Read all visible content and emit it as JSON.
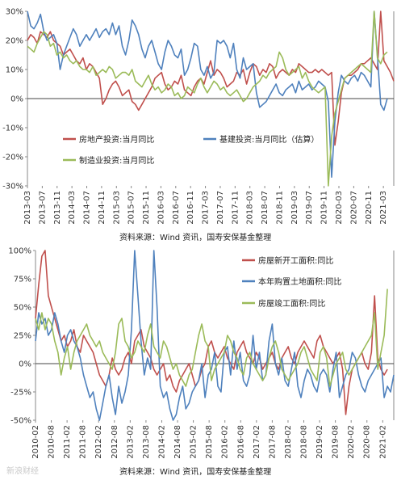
{
  "chart_data": [
    {
      "type": "line",
      "x_start": "2013-03",
      "x_ticks": [
        "2013-03",
        "2013-07",
        "2013-11",
        "2014-03",
        "2014-07",
        "2014-11",
        "2015-03",
        "2015-07",
        "2015-11",
        "2016-03",
        "2016-07",
        "2016-11",
        "2017-03",
        "2017-07",
        "2017-11",
        "2018-03",
        "2018-07",
        "2018-11",
        "2019-03",
        "2019-07",
        "2019-11",
        "2020-03",
        "2020-07",
        "2020-11",
        "2021-03"
      ],
      "y_ticks": [
        "30%",
        "20%",
        "10%",
        "0%",
        "-10%",
        "-20%",
        "-30%"
      ],
      "ylim": [
        -30,
        30
      ],
      "y_unit": "%",
      "source": "资料来源：Wind 资讯，国寿安保基金整理",
      "series": [
        {
          "name": "房地产投资:当月同比",
          "color": "#c0504d",
          "values": [
            20,
            22,
            21,
            19,
            23,
            22,
            21,
            23,
            20,
            19,
            18,
            15,
            16,
            17,
            15,
            13,
            12,
            14,
            10,
            12,
            11,
            9,
            7,
            -2,
            0,
            3,
            5,
            6,
            4,
            1,
            2,
            3,
            -1,
            -2,
            -4,
            -2,
            0,
            2,
            4,
            7,
            8,
            9,
            5,
            3,
            4,
            6,
            5,
            8,
            3,
            2,
            1,
            4,
            6,
            7,
            5,
            9,
            13,
            8,
            10,
            9,
            7,
            4,
            5,
            6,
            9,
            8,
            10,
            5,
            9,
            12,
            11,
            8,
            10,
            9,
            12,
            11,
            7,
            9,
            10,
            9,
            8,
            10,
            9,
            12,
            11,
            10,
            9,
            9,
            10,
            9,
            10,
            9,
            8,
            9,
            -16,
            -8,
            2,
            7,
            8,
            8,
            9,
            10,
            12,
            12,
            13,
            14,
            12,
            10,
            30,
            13,
            11,
            9,
            6
          ]
        },
        {
          "name": "基建投资:当月同比（估算）",
          "color": "#4f81bd",
          "values": [
            30,
            25,
            24,
            26,
            29,
            23,
            20,
            21,
            22,
            19,
            10,
            15,
            18,
            21,
            24,
            22,
            18,
            20,
            22,
            20,
            22,
            24,
            21,
            23,
            24,
            22,
            26,
            22,
            25,
            18,
            15,
            20,
            27,
            25,
            22,
            17,
            14,
            18,
            20,
            16,
            12,
            10,
            16,
            20,
            18,
            15,
            14,
            17,
            8,
            10,
            14,
            19,
            18,
            10,
            8,
            11,
            7,
            9,
            20,
            19,
            20,
            18,
            14,
            19,
            10,
            7,
            14,
            10,
            11,
            12,
            2,
            -3,
            -2,
            -1,
            1,
            3,
            5,
            2,
            1,
            3,
            4,
            5,
            2,
            6,
            3,
            4,
            5,
            3,
            4,
            6,
            5,
            4,
            -1,
            -27,
            -8,
            2,
            8,
            6,
            5,
            7,
            8,
            6,
            9,
            8,
            6,
            4,
            34,
            15,
            -2,
            -4,
            0
          ]
        },
        {
          "name": "制造业投资:当月同比",
          "color": "#9bbb59",
          "values": [
            18,
            17,
            16,
            19,
            21,
            23,
            22,
            18,
            19,
            15,
            16,
            14,
            15,
            13,
            12,
            13,
            11,
            10,
            10,
            9,
            11,
            8,
            9,
            10,
            9,
            11,
            10,
            7,
            8,
            9,
            9,
            8,
            10,
            6,
            5,
            4,
            6,
            8,
            5,
            3,
            4,
            2,
            3,
            5,
            4,
            1,
            2,
            0,
            1,
            4,
            3,
            2,
            5,
            7,
            4,
            2,
            4,
            6,
            5,
            3,
            4,
            2,
            1,
            2,
            3,
            1,
            -1,
            0,
            2,
            4,
            5,
            6,
            8,
            7,
            9,
            10,
            11,
            16,
            14,
            10,
            8,
            9,
            10,
            11,
            7,
            9,
            6,
            4,
            3,
            2,
            3,
            4,
            -30,
            -13,
            -5,
            -1,
            3,
            7,
            8,
            9,
            10,
            11,
            12,
            11,
            10,
            9,
            30,
            14,
            12,
            15,
            16
          ]
        }
      ]
    },
    {
      "type": "line",
      "x_start": "2010-02",
      "x_ticks": [
        "2010-02",
        "2010-08",
        "2011-02",
        "2011-08",
        "2012-02",
        "2012-08",
        "2013-02",
        "2013-08",
        "2014-02",
        "2014-08",
        "2015-02",
        "2015-08",
        "2016-02",
        "2016-08",
        "2017-02",
        "2017-08",
        "2018-02",
        "2018-08",
        "2019-02",
        "2019-08",
        "2020-02",
        "2020-08",
        "2021-02"
      ],
      "y_ticks": [
        "100%",
        "75%",
        "50%",
        "25%",
        "0%",
        "-25%",
        "-50%"
      ],
      "ylim": [
        -50,
        100
      ],
      "y_unit": "%",
      "source": "资料来源：Wind 资讯，国寿安保基金整理",
      "series": [
        {
          "name": "房屋新开工面积:同比",
          "color": "#c0504d",
          "values": [
            40,
            70,
            95,
            100,
            60,
            50,
            40,
            30,
            20,
            25,
            15,
            20,
            30,
            15,
            10,
            25,
            20,
            15,
            10,
            0,
            -10,
            -15,
            -20,
            -10,
            5,
            -5,
            -10,
            -5,
            5,
            10,
            0,
            20,
            25,
            30,
            15,
            10,
            5,
            -5,
            -10,
            -5,
            0,
            -15,
            -10,
            -20,
            -25,
            -15,
            -10,
            -5,
            0,
            -10,
            -20,
            -15,
            -5,
            0,
            15,
            20,
            10,
            5,
            10,
            15,
            5,
            0,
            -5,
            10,
            15,
            20,
            10,
            5,
            0,
            10,
            5,
            -5,
            0,
            5,
            10,
            0,
            -5,
            5,
            10,
            15,
            5,
            0,
            10,
            15,
            20,
            15,
            10,
            5,
            20,
            25,
            15,
            10,
            5,
            0,
            5,
            10,
            -5,
            -45,
            -20,
            -5,
            0,
            5,
            10,
            0,
            -5,
            10,
            60,
            5,
            -5,
            -10,
            -5
          ]
        },
        {
          "name": "本年购置土地面积:同比",
          "color": "#4f81bd",
          "values": [
            20,
            45,
            35,
            40,
            25,
            30,
            45,
            35,
            20,
            10,
            25,
            30,
            20,
            15,
            5,
            -10,
            -20,
            -30,
            -25,
            -40,
            -50,
            -35,
            -20,
            -10,
            -30,
            -45,
            -20,
            -35,
            -25,
            -10,
            30,
            100,
            60,
            20,
            -10,
            5,
            -5,
            100,
            50,
            -20,
            -30,
            -25,
            -40,
            -50,
            -45,
            -30,
            -20,
            -40,
            -35,
            -25,
            -20,
            -15,
            0,
            -30,
            -10,
            -5,
            10,
            -20,
            -25,
            10,
            15,
            -10,
            20,
            -5,
            10,
            -15,
            -20,
            -10,
            25,
            -5,
            10,
            -15,
            -10,
            20,
            35,
            0,
            -10,
            5,
            -15,
            -20,
            -5,
            10,
            -20,
            -30,
            -15,
            -5,
            -10,
            -20,
            -25,
            -10,
            -5,
            -10,
            -25,
            -5,
            10,
            -30,
            -20,
            -10,
            -5,
            10,
            5,
            -10,
            -20,
            -25,
            -15,
            -10,
            -5,
            0,
            5,
            -30,
            -20,
            -25,
            -10
          ]
        },
        {
          "name": "房屋竣工面积:同比",
          "color": "#9bbb59",
          "values": [
            40,
            30,
            45,
            30,
            40,
            35,
            20,
            10,
            -10,
            5,
            15,
            -5,
            10,
            20,
            25,
            30,
            35,
            25,
            20,
            15,
            20,
            10,
            5,
            0,
            -5,
            10,
            35,
            40,
            20,
            15,
            5,
            10,
            20,
            15,
            10,
            25,
            35,
            15,
            10,
            5,
            20,
            15,
            5,
            -5,
            0,
            -10,
            -15,
            -20,
            -10,
            -5,
            10,
            25,
            35,
            20,
            15,
            -15,
            -5,
            0,
            5,
            10,
            25,
            20,
            10,
            5,
            -5,
            -10,
            5,
            10,
            0,
            -5,
            -10,
            -15,
            -10,
            5,
            15,
            20,
            10,
            -5,
            -10,
            -15,
            -10,
            -5,
            0,
            10,
            15,
            5,
            -5,
            -10,
            -15,
            10,
            15,
            5,
            -20,
            -10,
            0,
            5,
            10,
            -5,
            -10,
            -5,
            0,
            5,
            10,
            15,
            20,
            25,
            45,
            -5,
            10,
            25,
            66
          ]
        }
      ]
    }
  ],
  "watermark": "新浪财经"
}
